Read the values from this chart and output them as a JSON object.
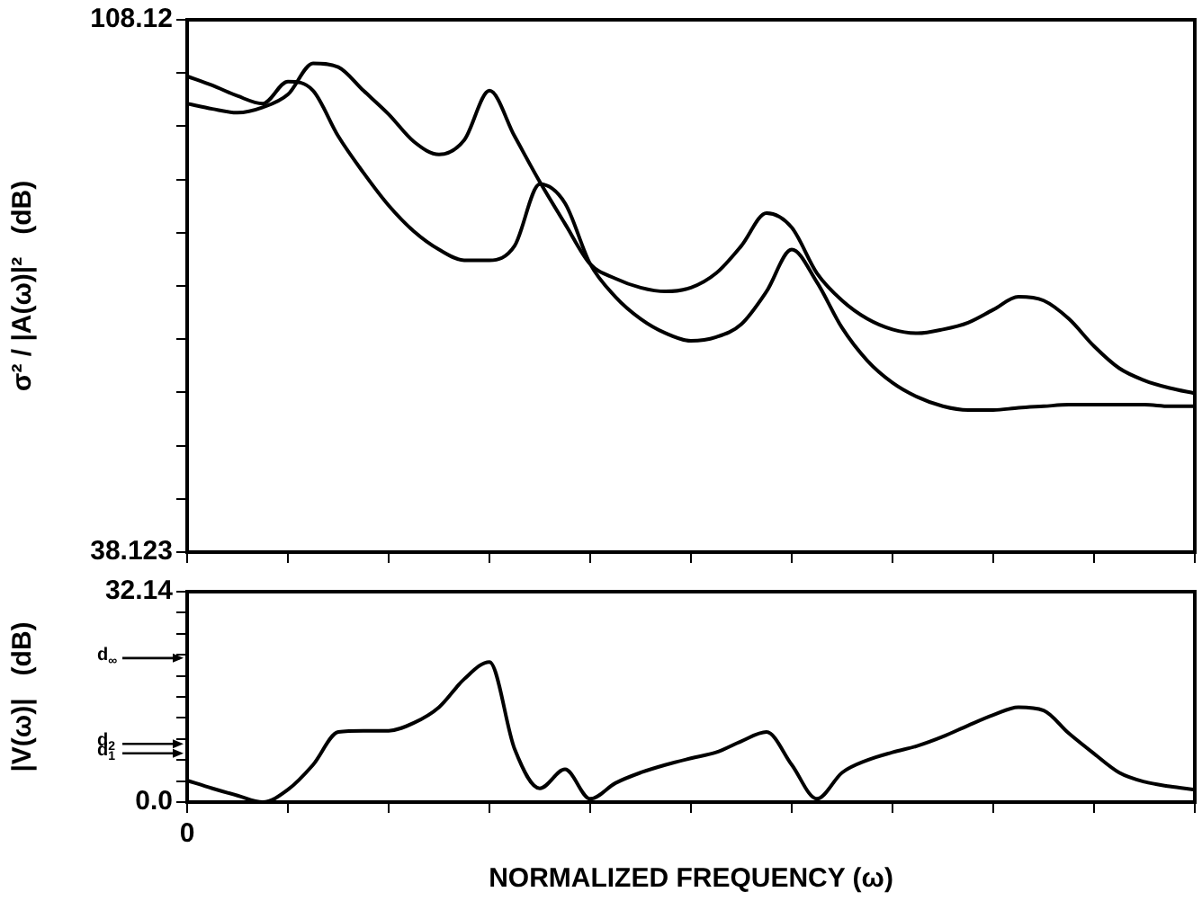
{
  "chart_data": [
    {
      "type": "line",
      "ylabel": "σ² / |A(ω)|²   (dB)",
      "categories": [
        null,
        null,
        null,
        null,
        null,
        null,
        null,
        null,
        null,
        null,
        null,
        null,
        null,
        null,
        null,
        null,
        null,
        null,
        null,
        null,
        null,
        null,
        null,
        null,
        null,
        null,
        null,
        null,
        null,
        null,
        null,
        null,
        null,
        null,
        null,
        null,
        null,
        null,
        null,
        null,
        null
      ],
      "series": [
        {
          "color": "#000000",
          "values": [
            97.1,
            96.4,
            95.9,
            96.6,
            98.3,
            102.4,
            101.9,
            98.8,
            95.7,
            92.1,
            90.4,
            92.3,
            98.8,
            92.8,
            86.8,
            81.3,
            76.0,
            74.1,
            72.9,
            72.4,
            72.9,
            74.8,
            78.4,
            82.7,
            80.8,
            74.8,
            71.2,
            68.8,
            67.4,
            66.9,
            67.4,
            68.3,
            70.0,
            71.7,
            71.2,
            68.8,
            65.2,
            62.3,
            60.7,
            59.7,
            59.0
          ]
        },
        {
          "color": "#000000",
          "values": [
            100.7,
            99.5,
            98.1,
            97.1,
            100.0,
            98.8,
            92.8,
            88.0,
            83.7,
            80.3,
            77.9,
            76.5,
            76.5,
            78.4,
            86.5,
            84.0,
            76.0,
            71.7,
            68.8,
            66.9,
            65.9,
            66.4,
            68.1,
            72.4,
            77.9,
            73.6,
            67.6,
            63.3,
            60.4,
            58.5,
            57.3,
            56.8,
            56.8,
            57.1,
            57.3,
            57.5,
            57.5,
            57.5,
            57.5,
            57.3,
            57.3
          ]
        }
      ],
      "ylim": [
        38.123,
        108.12
      ],
      "yticks": [
        38.123,
        {
          "value": 45.123,
          "label": null
        },
        {
          "value": 52.123,
          "label": null
        },
        {
          "value": 59.122,
          "label": null
        },
        {
          "value": 66.122,
          "label": null
        },
        {
          "value": 73.122,
          "label": null
        },
        {
          "value": 80.121,
          "label": null
        },
        {
          "value": 87.121,
          "label": null
        },
        {
          "value": 94.12,
          "label": null
        },
        {
          "value": 101.12,
          "label": null
        },
        108.12
      ],
      "tick_labels": "y",
      "grid": false,
      "legend": false
    },
    {
      "type": "line",
      "xlabel": "NORMALIZED FREQUENCY (ω)",
      "ylabel": "|V(ω)|   (dB)",
      "categories": [
        "0",
        null,
        null,
        null,
        null,
        null,
        null,
        null,
        null,
        null,
        null,
        null,
        null,
        null,
        null,
        null,
        null,
        null,
        null,
        null,
        null,
        null,
        null,
        null,
        null,
        null,
        null,
        null,
        null,
        null,
        null,
        null,
        null,
        null,
        null,
        null,
        null,
        null,
        null,
        null,
        null
      ],
      "series": [
        {
          "color": "#000000",
          "values": [
            3.3,
            2.1,
            1.0,
            0.0,
            1.9,
            5.7,
            10.7,
            10.9,
            10.9,
            12.1,
            14.5,
            18.8,
            21.4,
            8.1,
            2.1,
            5.0,
            0.5,
            2.9,
            4.5,
            5.7,
            6.7,
            7.6,
            9.3,
            10.7,
            5.7,
            0.5,
            4.5,
            6.4,
            7.6,
            8.6,
            10.0,
            11.7,
            13.3,
            14.5,
            14.0,
            10.5,
            7.4,
            4.5,
            3.1,
            2.4,
            1.9
          ]
        }
      ],
      "ylim": [
        0,
        32.14
      ],
      "yticks": [
        {
          "value": 0,
          "label": "0.0"
        },
        {
          "value": 3.214,
          "label": null
        },
        {
          "value": 6.428,
          "label": null
        },
        {
          "value": 9.642,
          "label": null
        },
        {
          "value": 12.856,
          "label": null
        },
        {
          "value": 16.07,
          "label": null
        },
        {
          "value": 19.284,
          "label": null
        },
        {
          "value": 22.498,
          "label": null
        },
        {
          "value": 25.712,
          "label": null
        },
        {
          "value": 28.926,
          "label": null
        },
        32.14
      ],
      "ref_lines": [
        {
          "axis": "y",
          "value": 22.0,
          "label": "d$_{∞}$"
        },
        {
          "axis": "y",
          "value": 8.9,
          "label": "d$_{2}$"
        },
        {
          "axis": "y",
          "value": 7.45,
          "label": "d$_{1}$"
        }
      ],
      "grid": false,
      "legend": false
    }
  ]
}
